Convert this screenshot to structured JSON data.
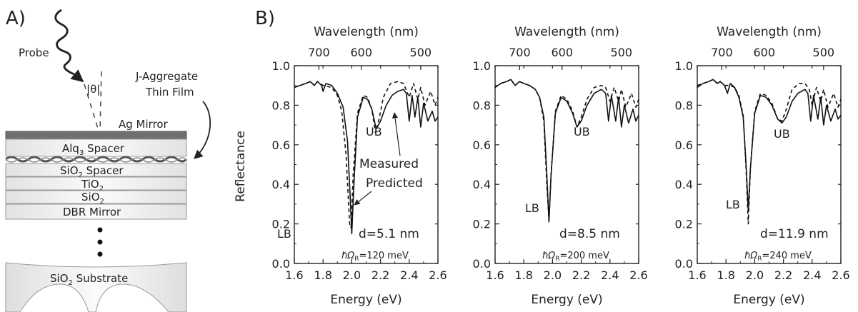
{
  "panel_a": {
    "label": "A)",
    "probe": "Probe",
    "theta": "θ",
    "jagg_line1": "J-Aggregate",
    "jagg_line2": "Thin Film",
    "ag_mirror": "Ag Mirror",
    "alq_main": "Alq",
    "alq_sub": "3",
    "alq_rest": " Spacer",
    "sio2_spacer_main": "SiO",
    "sio2_spacer_sub": "2",
    "sio2_spacer_rest": " Spacer",
    "tio2_main": "TiO",
    "tio2_sub": "2",
    "sio2_main": "SiO",
    "sio2_sub": "2",
    "dbr": "DBR Mirror",
    "substrate_main": "SiO",
    "substrate_sub": "2",
    "substrate_rest": " Substrate",
    "colors": {
      "ag": "#707070",
      "layer_edge": "#e4e4e4",
      "layer_mid": "#fafafa",
      "wave": "#555555"
    }
  },
  "panel_b": {
    "label": "B)"
  },
  "chart_data": [
    {
      "type": "line",
      "xlabel": "Energy (eV)",
      "ylabel": "Reflectance",
      "top_xlabel": "Wavelength (nm)",
      "xlim": [
        1.6,
        2.6
      ],
      "ylim": [
        0.0,
        1.0
      ],
      "xticks": [
        "1.6",
        "1.8",
        "2.0",
        "2.2",
        "2.4",
        "2.6"
      ],
      "yticks": [
        "0.0",
        "0.2",
        "0.4",
        "0.6",
        "0.8",
        "1.0"
      ],
      "top_ticks": [
        {
          "label": "700",
          "nm": 700
        },
        {
          "label": "600",
          "nm": 600
        },
        {
          "label": "500",
          "nm": 500
        }
      ],
      "series": [
        {
          "name": "Measured",
          "style": "solid",
          "points": [
            [
              1.6,
              0.89
            ],
            [
              1.64,
              0.9
            ],
            [
              1.68,
              0.91
            ],
            [
              1.71,
              0.92
            ],
            [
              1.74,
              0.9
            ],
            [
              1.76,
              0.92
            ],
            [
              1.79,
              0.9
            ],
            [
              1.8,
              0.87
            ],
            [
              1.82,
              0.91
            ],
            [
              1.86,
              0.9
            ],
            [
              1.9,
              0.86
            ],
            [
              1.94,
              0.79
            ],
            [
              1.97,
              0.62
            ],
            [
              1.99,
              0.32
            ],
            [
              2.0,
              0.15
            ],
            [
              2.015,
              0.4
            ],
            [
              2.04,
              0.74
            ],
            [
              2.08,
              0.84
            ],
            [
              2.11,
              0.83
            ],
            [
              2.14,
              0.78
            ],
            [
              2.17,
              0.68
            ],
            [
              2.2,
              0.72
            ],
            [
              2.24,
              0.8
            ],
            [
              2.28,
              0.85
            ],
            [
              2.32,
              0.87
            ],
            [
              2.36,
              0.88
            ],
            [
              2.38,
              0.86
            ],
            [
              2.4,
              0.72
            ],
            [
              2.42,
              0.85
            ],
            [
              2.44,
              0.74
            ],
            [
              2.46,
              0.84
            ],
            [
              2.48,
              0.69
            ],
            [
              2.5,
              0.81
            ],
            [
              2.53,
              0.72
            ],
            [
              2.56,
              0.77
            ],
            [
              2.58,
              0.72
            ],
            [
              2.6,
              0.74
            ]
          ]
        },
        {
          "name": "Predicted",
          "style": "dashed",
          "points": [
            [
              1.6,
              0.89
            ],
            [
              1.64,
              0.9
            ],
            [
              1.68,
              0.91
            ],
            [
              1.71,
              0.92
            ],
            [
              1.74,
              0.9
            ],
            [
              1.76,
              0.92
            ],
            [
              1.8,
              0.9
            ],
            [
              1.86,
              0.89
            ],
            [
              1.9,
              0.85
            ],
            [
              1.93,
              0.77
            ],
            [
              1.96,
              0.55
            ],
            [
              1.985,
              0.2
            ],
            [
              1.995,
              0.18
            ],
            [
              2.01,
              0.45
            ],
            [
              2.04,
              0.76
            ],
            [
              2.08,
              0.85
            ],
            [
              2.11,
              0.84
            ],
            [
              2.14,
              0.78
            ],
            [
              2.165,
              0.66
            ],
            [
              2.19,
              0.73
            ],
            [
              2.22,
              0.84
            ],
            [
              2.27,
              0.91
            ],
            [
              2.32,
              0.92
            ],
            [
              2.36,
              0.91
            ],
            [
              2.4,
              0.84
            ],
            [
              2.43,
              0.91
            ],
            [
              2.46,
              0.83
            ],
            [
              2.48,
              0.89
            ],
            [
              2.51,
              0.8
            ],
            [
              2.55,
              0.87
            ],
            [
              2.58,
              0.8
            ],
            [
              2.6,
              0.84
            ]
          ]
        }
      ],
      "labels": {
        "lb": "LB",
        "ub": "UB",
        "measured": "Measured",
        "predicted": "Predicted",
        "d": "d=5.1 nm",
        "omega_pre": "ℏΩ",
        "omega_sub": "R",
        "omega_val": "=120 meV"
      }
    },
    {
      "type": "line",
      "xlabel": "Energy (eV)",
      "top_xlabel": "Wavelength (nm)",
      "xlim": [
        1.6,
        2.6
      ],
      "ylim": [
        0.0,
        1.0
      ],
      "xticks": [
        "1.6",
        "1.8",
        "2.0",
        "2.2",
        "2.4",
        "2.6"
      ],
      "yticks": [
        "0.0",
        "0.2",
        "0.4",
        "0.6",
        "0.8",
        "1.0"
      ],
      "top_ticks": [
        {
          "label": "700",
          "nm": 700
        },
        {
          "label": "600",
          "nm": 600
        },
        {
          "label": "500",
          "nm": 500
        }
      ],
      "series": [
        {
          "name": "Measured",
          "style": "solid",
          "points": [
            [
              1.6,
              0.89
            ],
            [
              1.64,
              0.91
            ],
            [
              1.68,
              0.92
            ],
            [
              1.71,
              0.93
            ],
            [
              1.74,
              0.9
            ],
            [
              1.77,
              0.92
            ],
            [
              1.8,
              0.91
            ],
            [
              1.84,
              0.9
            ],
            [
              1.88,
              0.88
            ],
            [
              1.91,
              0.84
            ],
            [
              1.94,
              0.74
            ],
            [
              1.96,
              0.45
            ],
            [
              1.975,
              0.21
            ],
            [
              1.99,
              0.45
            ],
            [
              2.02,
              0.76
            ],
            [
              2.06,
              0.84
            ],
            [
              2.1,
              0.82
            ],
            [
              2.14,
              0.76
            ],
            [
              2.17,
              0.69
            ],
            [
              2.2,
              0.72
            ],
            [
              2.24,
              0.8
            ],
            [
              2.29,
              0.86
            ],
            [
              2.34,
              0.88
            ],
            [
              2.37,
              0.86
            ],
            [
              2.39,
              0.72
            ],
            [
              2.41,
              0.85
            ],
            [
              2.44,
              0.72
            ],
            [
              2.46,
              0.84
            ],
            [
              2.48,
              0.69
            ],
            [
              2.5,
              0.8
            ],
            [
              2.53,
              0.71
            ],
            [
              2.56,
              0.78
            ],
            [
              2.58,
              0.72
            ],
            [
              2.6,
              0.75
            ]
          ]
        },
        {
          "name": "Predicted",
          "style": "dashed",
          "points": [
            [
              1.6,
              0.89
            ],
            [
              1.64,
              0.91
            ],
            [
              1.68,
              0.92
            ],
            [
              1.71,
              0.93
            ],
            [
              1.74,
              0.9
            ],
            [
              1.77,
              0.92
            ],
            [
              1.8,
              0.91
            ],
            [
              1.84,
              0.9
            ],
            [
              1.88,
              0.88
            ],
            [
              1.91,
              0.84
            ],
            [
              1.94,
              0.72
            ],
            [
              1.96,
              0.4
            ],
            [
              1.975,
              0.22
            ],
            [
              1.99,
              0.45
            ],
            [
              2.02,
              0.77
            ],
            [
              2.06,
              0.85
            ],
            [
              2.1,
              0.83
            ],
            [
              2.14,
              0.77
            ],
            [
              2.17,
              0.69
            ],
            [
              2.2,
              0.74
            ],
            [
              2.24,
              0.83
            ],
            [
              2.29,
              0.89
            ],
            [
              2.34,
              0.9
            ],
            [
              2.37,
              0.89
            ],
            [
              2.4,
              0.82
            ],
            [
              2.43,
              0.89
            ],
            [
              2.46,
              0.82
            ],
            [
              2.48,
              0.88
            ],
            [
              2.51,
              0.79
            ],
            [
              2.55,
              0.86
            ],
            [
              2.58,
              0.79
            ],
            [
              2.6,
              0.83
            ]
          ]
        }
      ],
      "labels": {
        "lb": "LB",
        "ub": "UB",
        "d": "d=8.5 nm",
        "omega_pre": "ℏΩ",
        "omega_sub": "R",
        "omega_val": "=200 meV"
      }
    },
    {
      "type": "line",
      "xlabel": "Energy (eV)",
      "top_xlabel": "Wavelength (nm)",
      "xlim": [
        1.6,
        2.6
      ],
      "ylim": [
        0.0,
        1.0
      ],
      "xticks": [
        "1.6",
        "1.8",
        "2.0",
        "2.2",
        "2.4",
        "2.6"
      ],
      "yticks": [
        "0.0",
        "0.2",
        "0.4",
        "0.6",
        "0.8",
        "1.0"
      ],
      "top_ticks": [
        {
          "label": "700",
          "nm": 700
        },
        {
          "label": "600",
          "nm": 600
        },
        {
          "label": "500",
          "nm": 500
        }
      ],
      "series": [
        {
          "name": "Measured",
          "style": "solid",
          "points": [
            [
              1.6,
              0.89
            ],
            [
              1.64,
              0.91
            ],
            [
              1.68,
              0.92
            ],
            [
              1.71,
              0.93
            ],
            [
              1.74,
              0.91
            ],
            [
              1.76,
              0.92
            ],
            [
              1.79,
              0.9
            ],
            [
              1.81,
              0.86
            ],
            [
              1.83,
              0.91
            ],
            [
              1.86,
              0.89
            ],
            [
              1.89,
              0.84
            ],
            [
              1.92,
              0.74
            ],
            [
              1.94,
              0.5
            ],
            [
              1.955,
              0.27
            ],
            [
              1.97,
              0.48
            ],
            [
              2.0,
              0.76
            ],
            [
              2.04,
              0.85
            ],
            [
              2.08,
              0.84
            ],
            [
              2.12,
              0.8
            ],
            [
              2.16,
              0.73
            ],
            [
              2.19,
              0.71
            ],
            [
              2.22,
              0.74
            ],
            [
              2.26,
              0.82
            ],
            [
              2.3,
              0.86
            ],
            [
              2.35,
              0.88
            ],
            [
              2.37,
              0.86
            ],
            [
              2.39,
              0.72
            ],
            [
              2.41,
              0.85
            ],
            [
              2.44,
              0.73
            ],
            [
              2.46,
              0.84
            ],
            [
              2.48,
              0.7
            ],
            [
              2.5,
              0.8
            ],
            [
              2.53,
              0.72
            ],
            [
              2.56,
              0.78
            ],
            [
              2.58,
              0.73
            ],
            [
              2.6,
              0.75
            ]
          ]
        },
        {
          "name": "Predicted",
          "style": "dashed",
          "points": [
            [
              1.6,
              0.9
            ],
            [
              1.64,
              0.91
            ],
            [
              1.68,
              0.92
            ],
            [
              1.71,
              0.93
            ],
            [
              1.74,
              0.91
            ],
            [
              1.76,
              0.92
            ],
            [
              1.79,
              0.9
            ],
            [
              1.83,
              0.9
            ],
            [
              1.86,
              0.89
            ],
            [
              1.89,
              0.85
            ],
            [
              1.92,
              0.75
            ],
            [
              1.94,
              0.48
            ],
            [
              1.955,
              0.2
            ],
            [
              1.97,
              0.48
            ],
            [
              2.0,
              0.77
            ],
            [
              2.04,
              0.86
            ],
            [
              2.08,
              0.85
            ],
            [
              2.12,
              0.81
            ],
            [
              2.16,
              0.73
            ],
            [
              2.19,
              0.72
            ],
            [
              2.22,
              0.78
            ],
            [
              2.26,
              0.88
            ],
            [
              2.31,
              0.91
            ],
            [
              2.35,
              0.91
            ],
            [
              2.38,
              0.88
            ],
            [
              2.4,
              0.8
            ],
            [
              2.43,
              0.89
            ],
            [
              2.46,
              0.82
            ],
            [
              2.48,
              0.88
            ],
            [
              2.51,
              0.79
            ],
            [
              2.55,
              0.86
            ],
            [
              2.58,
              0.79
            ],
            [
              2.6,
              0.83
            ]
          ]
        }
      ],
      "labels": {
        "lb": "LB",
        "ub": "UB",
        "d": "d=11.9 nm",
        "omega_pre": "ℏΩ",
        "omega_sub": "R",
        "omega_val": "=240 meV"
      }
    }
  ]
}
